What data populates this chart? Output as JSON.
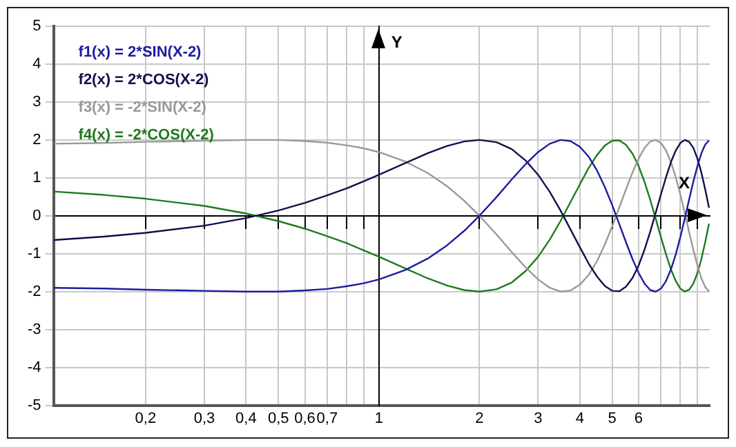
{
  "chart_data": {
    "type": "line",
    "xlabel": "X",
    "ylabel": "Y",
    "log": "x",
    "grid": true,
    "legend": "top left",
    "marker": "none",
    "line_style": "solid",
    "x": [
      0.106,
      0.15,
      0.2,
      0.3,
      0.4,
      0.5,
      0.6,
      0.7,
      0.8,
      0.9,
      1,
      1.2,
      1.4,
      1.6,
      1.8,
      2,
      2.25,
      2.5,
      2.75,
      3,
      3.25,
      3.5,
      3.75,
      4,
      4.25,
      4.5,
      4.75,
      5,
      5.25,
      5.5,
      5.75,
      6,
      6.25,
      6.5,
      6.75,
      7,
      7.25,
      7.5,
      7.75,
      8,
      8.25,
      8.5,
      8.75,
      9,
      9.25,
      9.5,
      9.75
    ],
    "xlim": [
      0.106,
      9.8
    ],
    "xticks": [
      {
        "value": 0.2,
        "label": "0,2"
      },
      {
        "value": 0.3,
        "label": "0,3"
      },
      {
        "value": 0.4,
        "label": "0,4"
      },
      {
        "value": 0.5,
        "label": "0,5"
      },
      {
        "value": 0.6,
        "label": "0,6"
      },
      {
        "value": 0.7,
        "label": "0,7"
      },
      {
        "value": 0.8,
        "label": null
      },
      {
        "value": 0.9,
        "label": null
      },
      {
        "value": 1,
        "label": "1"
      },
      2,
      3,
      4,
      5,
      6,
      {
        "value": 7,
        "label": null
      },
      {
        "value": 8,
        "label": null
      },
      {
        "value": 9,
        "label": null
      }
    ],
    "ylim": [
      -5,
      5
    ],
    "yticks": [
      -5,
      -4,
      -3,
      -2,
      -1,
      0,
      1,
      2,
      3,
      4,
      5
    ],
    "series": [
      {
        "name": "f1(x) = 2*SIN(X-2)",
        "color": "#1c1ca0",
        "values": [
          -1.9,
          -1.92,
          -1.95,
          -1.98,
          -2.0,
          -2.0,
          -1.97,
          -1.93,
          -1.86,
          -1.78,
          -1.68,
          -1.43,
          -1.13,
          -0.78,
          -0.4,
          0,
          0.49,
          0.96,
          1.36,
          1.68,
          1.9,
          2.0,
          1.97,
          1.82,
          1.56,
          1.2,
          0.76,
          0.28,
          -0.22,
          -0.7,
          -1.14,
          -1.51,
          -1.79,
          -1.96,
          -2.0,
          -1.92,
          -1.72,
          -1.41,
          -1.02,
          -0.56,
          -0.07,
          0.43,
          0.9,
          1.31,
          1.65,
          1.88,
          1.99
        ]
      },
      {
        "name": "f2(x) = 2*COS(X-2)",
        "color": "#10104a",
        "values": [
          -0.64,
          -0.55,
          -0.45,
          -0.26,
          -0.06,
          0.14,
          0.34,
          0.54,
          0.72,
          0.91,
          1.08,
          1.39,
          1.65,
          1.84,
          1.96,
          2.0,
          1.94,
          1.76,
          1.46,
          1.08,
          0.63,
          0.14,
          -0.36,
          -0.83,
          -1.26,
          -1.6,
          -1.85,
          -1.98,
          -1.99,
          -1.87,
          -1.64,
          -1.31,
          -0.89,
          -0.42,
          0.08,
          0.57,
          1.02,
          1.42,
          1.72,
          1.92,
          2.0,
          1.95,
          1.79,
          1.51,
          1.14,
          0.69,
          0.21
        ]
      },
      {
        "name": "f3(x) = -2*SIN(X-2)",
        "color": "#999999",
        "values": [
          1.9,
          1.92,
          1.95,
          1.98,
          2.0,
          2.0,
          1.97,
          1.93,
          1.86,
          1.78,
          1.68,
          1.43,
          1.13,
          0.78,
          0.4,
          0,
          -0.49,
          -0.96,
          -1.36,
          -1.68,
          -1.9,
          -2.0,
          -1.97,
          -1.82,
          -1.56,
          -1.2,
          -0.76,
          -0.28,
          0.22,
          0.7,
          1.14,
          1.51,
          1.79,
          1.96,
          2.0,
          1.92,
          1.72,
          1.41,
          1.02,
          0.56,
          0.07,
          -0.43,
          -0.9,
          -1.31,
          -1.65,
          -1.88,
          -1.99
        ]
      },
      {
        "name": "f4(x) = -2*COS(X-2)",
        "color": "#1e7a1e",
        "values": [
          0.64,
          0.55,
          0.45,
          0.26,
          0.06,
          -0.14,
          -0.34,
          -0.54,
          -0.72,
          -0.91,
          -1.08,
          -1.39,
          -1.65,
          -1.84,
          -1.96,
          -2.0,
          -1.94,
          -1.76,
          -1.46,
          -1.08,
          -0.63,
          -0.14,
          0.36,
          0.83,
          1.26,
          1.6,
          1.85,
          1.98,
          1.99,
          1.87,
          1.64,
          1.31,
          0.89,
          0.42,
          -0.08,
          -0.57,
          -1.02,
          -1.42,
          -1.72,
          -1.92,
          -2.0,
          -1.95,
          -1.79,
          -1.51,
          -1.14,
          -0.69,
          -0.21
        ]
      }
    ]
  }
}
